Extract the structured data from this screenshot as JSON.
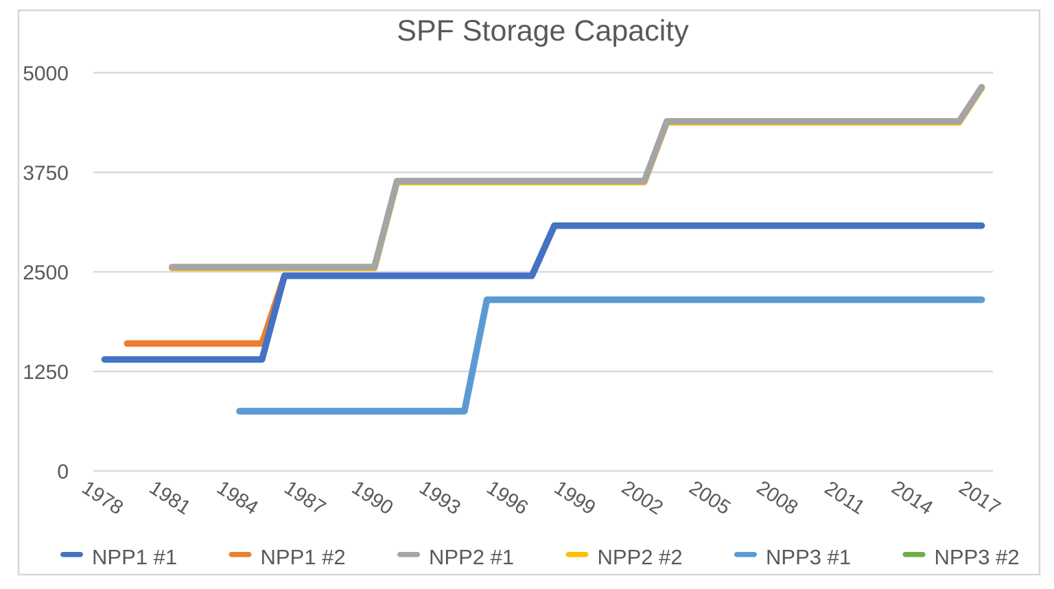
{
  "chart_data": {
    "type": "line",
    "title": "SPF Storage Capacity",
    "xlabel": "",
    "ylabel": "",
    "ylim": [
      0,
      5000
    ],
    "yticks": [
      0,
      1250,
      2500,
      3750,
      5000
    ],
    "x_years_range": [
      1978,
      2017
    ],
    "x_tick_labels": [
      "1978",
      "1981",
      "1984",
      "1987",
      "1990",
      "1993",
      "1996",
      "1999",
      "2002",
      "2005",
      "2008",
      "2011",
      "2014",
      "2017"
    ],
    "grid": "horizontal",
    "legend_position": "bottom",
    "line_style": "stepped, thick rounded strokes",
    "series": [
      {
        "name": "NPP1 #1",
        "color": "#4472C4",
        "points": [
          [
            1978,
            1400
          ],
          [
            1985,
            1400
          ],
          [
            1986,
            2450
          ],
          [
            1997,
            2450
          ],
          [
            1998,
            3080
          ],
          [
            2017,
            3080
          ]
        ]
      },
      {
        "name": "NPP1 #2",
        "color": "#ED7D31",
        "points": [
          [
            1979,
            1600
          ],
          [
            1985,
            1600
          ],
          [
            1986,
            2450
          ],
          [
            1997,
            2450
          ],
          [
            1998,
            3080
          ],
          [
            2017,
            3080
          ]
        ],
        "note": "coincides with NPP1 #1 from 1986 onward and is hidden behind it"
      },
      {
        "name": "NPP2 #1",
        "color": "#A5A5A5",
        "points": [
          [
            1981,
            2560
          ],
          [
            1990,
            2560
          ],
          [
            1991,
            3640
          ],
          [
            2002,
            3640
          ],
          [
            2003,
            4390
          ],
          [
            2016,
            4390
          ],
          [
            2017,
            4820
          ]
        ]
      },
      {
        "name": "NPP2 #2",
        "color": "#FFC000",
        "points": [
          [
            1981,
            2560
          ],
          [
            1990,
            2560
          ],
          [
            1991,
            3640
          ],
          [
            2002,
            3640
          ],
          [
            2003,
            4390
          ],
          [
            2016,
            4390
          ],
          [
            2017,
            4820
          ]
        ],
        "note": "coincides with NPP2 #1 and is hidden behind it; yellow fringe visible at lower edge",
        "render_y_offset": 1.4
      },
      {
        "name": "NPP3 #1",
        "color": "#5B9BD5",
        "points": [
          [
            1984,
            750
          ],
          [
            1994,
            750
          ],
          [
            1995,
            2150
          ],
          [
            2017,
            2150
          ]
        ]
      },
      {
        "name": "NPP3 #2",
        "color": "#70AD47",
        "points": [
          [
            1984,
            750
          ],
          [
            1994,
            750
          ],
          [
            1995,
            2150
          ],
          [
            2017,
            2150
          ]
        ],
        "note": "coincides with NPP3 #1 and is fully hidden behind it"
      }
    ]
  }
}
